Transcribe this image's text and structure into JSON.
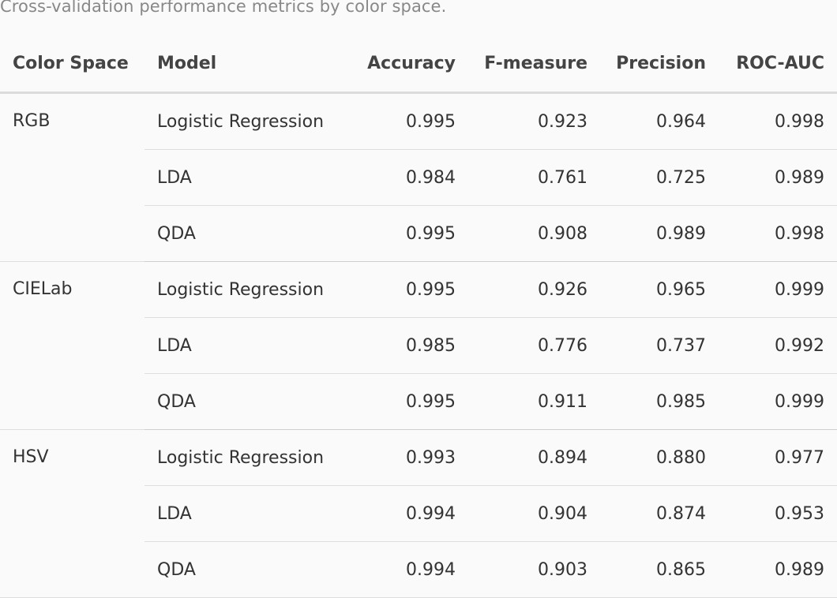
{
  "caption": "Cross-validation performance metrics by color space.",
  "table": {
    "headers": {
      "color_space": "Color Space",
      "model": "Model",
      "accuracy": "Accuracy",
      "f_measure": "F-measure",
      "precision": "Precision",
      "roc_auc": "ROC-AUC"
    },
    "groups": [
      {
        "color_space": "RGB",
        "rows": [
          {
            "model": "Logistic Regression",
            "accuracy": "0.995",
            "f_measure": "0.923",
            "precision": "0.964",
            "roc_auc": "0.998"
          },
          {
            "model": "LDA",
            "accuracy": "0.984",
            "f_measure": "0.761",
            "precision": "0.725",
            "roc_auc": "0.989"
          },
          {
            "model": "QDA",
            "accuracy": "0.995",
            "f_measure": "0.908",
            "precision": "0.989",
            "roc_auc": "0.998"
          }
        ]
      },
      {
        "color_space": "CIELab",
        "rows": [
          {
            "model": "Logistic Regression",
            "accuracy": "0.995",
            "f_measure": "0.926",
            "precision": "0.965",
            "roc_auc": "0.999"
          },
          {
            "model": "LDA",
            "accuracy": "0.985",
            "f_measure": "0.776",
            "precision": "0.737",
            "roc_auc": "0.992"
          },
          {
            "model": "QDA",
            "accuracy": "0.995",
            "f_measure": "0.911",
            "precision": "0.985",
            "roc_auc": "0.999"
          }
        ]
      },
      {
        "color_space": "HSV",
        "rows": [
          {
            "model": "Logistic Regression",
            "accuracy": "0.993",
            "f_measure": "0.894",
            "precision": "0.880",
            "roc_auc": "0.977"
          },
          {
            "model": "LDA",
            "accuracy": "0.994",
            "f_measure": "0.904",
            "precision": "0.874",
            "roc_auc": "0.953"
          },
          {
            "model": "QDA",
            "accuracy": "0.994",
            "f_measure": "0.903",
            "precision": "0.865",
            "roc_auc": "0.989"
          }
        ]
      }
    ]
  }
}
